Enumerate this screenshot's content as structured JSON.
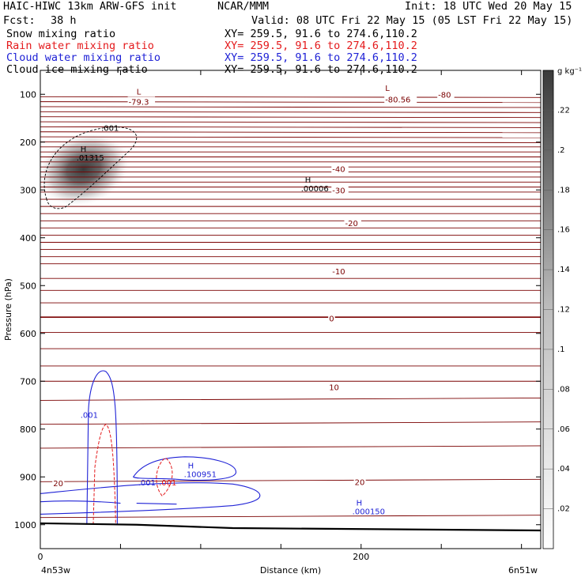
{
  "header": {
    "model": "HAIC-HIWC 13km ARW-GFS init",
    "org": "NCAR/MMM",
    "init": "Init: 18 UTC Wed 20 May 15",
    "fcst_label": "Fcst:",
    "fcst_value": "38 h",
    "valid": "Valid: 08 UTC Fri 22 May 15 (05 LST Fri 22 May 15)"
  },
  "legend": [
    {
      "name": "Snow mixing ratio",
      "color": "#000000",
      "xy": "XY= 259.5, 91.6 to 274.6,110.2"
    },
    {
      "name": "Rain water mixing ratio",
      "color": "#e41a1c",
      "xy": "XY= 259.5, 91.6 to 274.6,110.2"
    },
    {
      "name": "Cloud water mixing ratio",
      "color": "#1f22d6",
      "xy": "XY= 259.5, 91.6 to 274.6,110.2"
    },
    {
      "name": "Cloud ice mixing ratio",
      "color": "#000000",
      "xy": "XY= 259.5, 91.6 to 274.6,110.2"
    }
  ],
  "chart_data": {
    "type": "heatmap",
    "xlabel": "Distance (km)",
    "ylabel": "Pressure (hPa)",
    "xlim": [
      0,
      312
    ],
    "ylim": [
      1050,
      50
    ],
    "x_ticks": [
      0,
      200
    ],
    "y_ticks": [
      100,
      200,
      300,
      400,
      500,
      600,
      700,
      800,
      900,
      1000
    ],
    "left_location": "4n53w",
    "right_location": "6n51w",
    "colorbar": {
      "unit": "g kg⁻¹",
      "ticks": [
        ".02",
        ".04",
        ".06",
        ".08",
        ".1",
        ".12",
        ".14",
        ".16",
        ".18",
        ".2",
        ".22"
      ],
      "values": [
        0.02,
        0.04,
        0.06,
        0.08,
        0.1,
        0.12,
        0.14,
        0.16,
        0.18,
        0.2,
        0.22
      ],
      "range": [
        0,
        0.24
      ]
    },
    "cloud_ice_max": {
      "x": 25,
      "p": 260,
      "value": 0.01315
    },
    "temperature_labels": [
      {
        "text": "-79.3",
        "x": 55,
        "p": 115
      },
      {
        "text": "-80.56",
        "x": 215,
        "p": 110
      },
      {
        "text": "-80",
        "x": 248,
        "p": 100
      },
      {
        "text": "-40",
        "x": 182,
        "p": 256
      },
      {
        "text": "-30",
        "x": 182,
        "p": 300
      },
      {
        "text": "-20",
        "x": 190,
        "p": 369
      },
      {
        "text": "-10",
        "x": 182,
        "p": 470
      },
      {
        "text": "0",
        "x": 180,
        "p": 568
      },
      {
        "text": "10",
        "x": 180,
        "p": 712
      },
      {
        "text": "20",
        "x": 8,
        "p": 913
      },
      {
        "text": "20",
        "x": 196,
        "p": 910
      }
    ],
    "extrema": [
      {
        "letter": "L",
        "value": "",
        "x": 60,
        "p": 100,
        "color": "#7a0000"
      },
      {
        "letter": "L",
        "value": "",
        "x": 215,
        "p": 93,
        "color": "#7a0000"
      },
      {
        "letter": "H",
        "value": ".01315",
        "x": 25,
        "p": 220,
        "color": "#000000"
      },
      {
        "letter": "H",
        "value": ".00006",
        "x": 165,
        "p": 285,
        "color": "#000000"
      },
      {
        "letter": "H",
        "value": ".100951",
        "x": 92,
        "p": 882,
        "color": "#1f22d6"
      },
      {
        "letter": "H",
        "value": ".000150",
        "x": 197,
        "p": 960,
        "color": "#1f22d6"
      }
    ],
    "contour_labels": [
      {
        "text": ".001",
        "x": 38,
        "p": 170,
        "color": "#000000"
      },
      {
        "text": ".001",
        "x": 25,
        "p": 770,
        "color": "#1f22d6"
      },
      {
        "text": ".001",
        "x": 61,
        "p": 911,
        "color": "#1f22d6"
      },
      {
        "text": ".001",
        "x": 74,
        "p": 911,
        "color": "#e41a1c"
      }
    ]
  }
}
